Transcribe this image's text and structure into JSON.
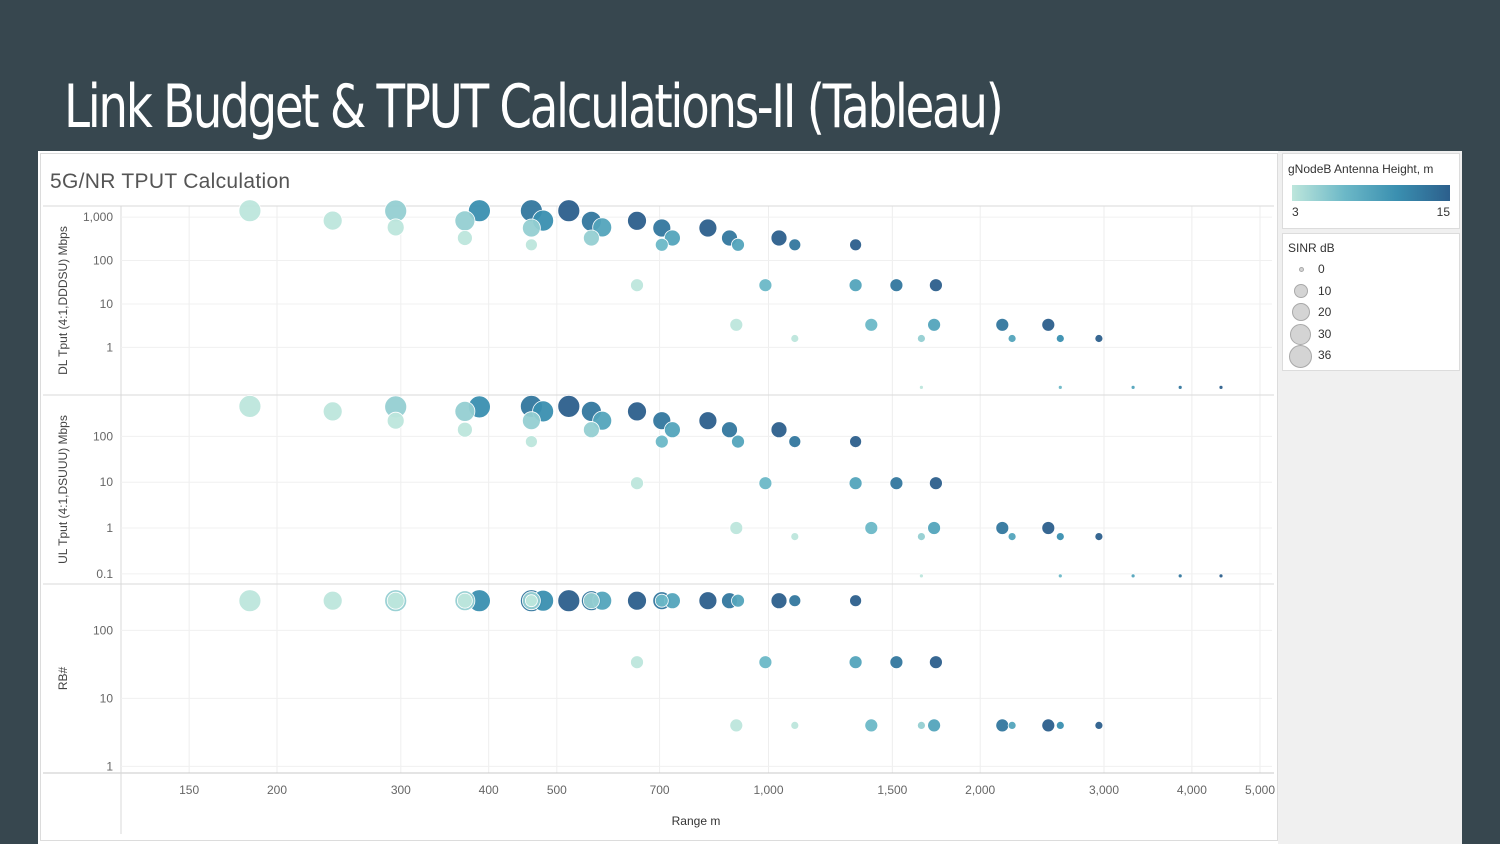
{
  "slide": {
    "title": "Link Budget & TPUT Calculations-II (Tableau)"
  },
  "viz": {
    "title": "5G/NR TPUT Calculation"
  },
  "legend_color": {
    "title": "gNodeB Antenna Height, m",
    "min_label": "3",
    "max_label": "15"
  },
  "legend_size": {
    "title": "SINR dB",
    "items": [
      {
        "label": "0",
        "value": 0
      },
      {
        "label": "10",
        "value": 10
      },
      {
        "label": "20",
        "value": 20
      },
      {
        "label": "30",
        "value": 30
      },
      {
        "label": "36",
        "value": 36
      }
    ]
  },
  "colors": {
    "background": "#37474f",
    "scale": [
      "#bde6dc",
      "#6cb8c7",
      "#3a8fb0",
      "#2c5f8c"
    ]
  },
  "chart_data": {
    "type": "scatter",
    "xlabel": "Range m",
    "xscale": "log",
    "xlim": [
      120,
      5200
    ],
    "x_ticks": [
      {
        "v": 150,
        "label": "150"
      },
      {
        "v": 200,
        "label": "200"
      },
      {
        "v": 300,
        "label": "300"
      },
      {
        "v": 400,
        "label": "400"
      },
      {
        "v": 500,
        "label": "500"
      },
      {
        "v": 700,
        "label": "700"
      },
      {
        "v": 1000,
        "label": "1,000"
      },
      {
        "v": 1500,
        "label": "1,500"
      },
      {
        "v": 2000,
        "label": "2,000"
      },
      {
        "v": 3000,
        "label": "3,000"
      },
      {
        "v": 4000,
        "label": "4,000"
      },
      {
        "v": 5000,
        "label": "5,000"
      }
    ],
    "color_encoding": "gNodeB Antenna Height, m",
    "size_encoding": "SINR dB",
    "panes": [
      {
        "ylabel": "DL Tput (4:1,DDDSU) Mbps",
        "yscale": "log",
        "ylim": [
          0.08,
          1800
        ],
        "y_ticks": [
          {
            "v": 1,
            "label": "1"
          },
          {
            "v": 10,
            "label": "10"
          },
          {
            "v": 100,
            "label": "100"
          },
          {
            "v": 1000,
            "label": "1,000"
          }
        ],
        "points": [
          {
            "x": 183,
            "y": 1400,
            "h": 3,
            "s": 36
          },
          {
            "x": 240,
            "y": 830,
            "h": 3,
            "s": 30
          },
          {
            "x": 295,
            "y": 1380,
            "h": 5,
            "s": 36
          },
          {
            "x": 295,
            "y": 580,
            "h": 3,
            "s": 26
          },
          {
            "x": 370,
            "y": 820,
            "h": 5,
            "s": 32
          },
          {
            "x": 370,
            "y": 330,
            "h": 3,
            "s": 22
          },
          {
            "x": 388,
            "y": 1400,
            "h": 11,
            "s": 36
          },
          {
            "x": 460,
            "y": 1400,
            "h": 13,
            "s": 36
          },
          {
            "x": 460,
            "y": 560,
            "h": 5,
            "s": 28
          },
          {
            "x": 460,
            "y": 230,
            "h": 3,
            "s": 16
          },
          {
            "x": 478,
            "y": 830,
            "h": 11,
            "s": 34
          },
          {
            "x": 520,
            "y": 1400,
            "h": 15,
            "s": 36
          },
          {
            "x": 560,
            "y": 800,
            "h": 13,
            "s": 32
          },
          {
            "x": 560,
            "y": 330,
            "h": 5,
            "s": 24
          },
          {
            "x": 580,
            "y": 580,
            "h": 9,
            "s": 30
          },
          {
            "x": 650,
            "y": 820,
            "h": 15,
            "s": 30
          },
          {
            "x": 650,
            "y": 27,
            "h": 3,
            "s": 18
          },
          {
            "x": 705,
            "y": 560,
            "h": 13,
            "s": 28
          },
          {
            "x": 705,
            "y": 230,
            "h": 7,
            "s": 18
          },
          {
            "x": 730,
            "y": 330,
            "h": 9,
            "s": 24
          },
          {
            "x": 820,
            "y": 560,
            "h": 15,
            "s": 28
          },
          {
            "x": 880,
            "y": 330,
            "h": 13,
            "s": 24
          },
          {
            "x": 905,
            "y": 230,
            "h": 9,
            "s": 18
          },
          {
            "x": 900,
            "y": 3.3,
            "h": 3,
            "s": 18
          },
          {
            "x": 990,
            "y": 27,
            "h": 7,
            "s": 18
          },
          {
            "x": 1035,
            "y": 330,
            "h": 15,
            "s": 24
          },
          {
            "x": 1090,
            "y": 230,
            "h": 13,
            "s": 16
          },
          {
            "x": 1090,
            "y": 1.6,
            "h": 3,
            "s": 8
          },
          {
            "x": 1330,
            "y": 230,
            "h": 15,
            "s": 16
          },
          {
            "x": 1330,
            "y": 27,
            "h": 9,
            "s": 18
          },
          {
            "x": 1400,
            "y": 3.3,
            "h": 7,
            "s": 18
          },
          {
            "x": 1520,
            "y": 27,
            "h": 13,
            "s": 18
          },
          {
            "x": 1650,
            "y": 1.6,
            "h": 5,
            "s": 8
          },
          {
            "x": 1650,
            "y": 0.12,
            "h": 3,
            "s": 0
          },
          {
            "x": 1730,
            "y": 27,
            "h": 15,
            "s": 18
          },
          {
            "x": 1720,
            "y": 3.3,
            "h": 9,
            "s": 18
          },
          {
            "x": 2150,
            "y": 3.3,
            "h": 13,
            "s": 18
          },
          {
            "x": 2220,
            "y": 1.6,
            "h": 9,
            "s": 8
          },
          {
            "x": 2500,
            "y": 3.3,
            "h": 15,
            "s": 18
          },
          {
            "x": 2600,
            "y": 1.6,
            "h": 11,
            "s": 8
          },
          {
            "x": 2600,
            "y": 0.12,
            "h": 7,
            "s": 0
          },
          {
            "x": 2950,
            "y": 1.6,
            "h": 15,
            "s": 8
          },
          {
            "x": 3300,
            "y": 0.12,
            "h": 9,
            "s": 0
          },
          {
            "x": 3850,
            "y": 0.12,
            "h": 13,
            "s": 0
          },
          {
            "x": 4400,
            "y": 0.12,
            "h": 15,
            "s": 0
          }
        ]
      },
      {
        "ylabel": "UL Tput (4:1,DSUUU) Mbps",
        "yscale": "log",
        "ylim": [
          0.06,
          800
        ],
        "y_ticks": [
          {
            "v": 0.1,
            "label": "0.1"
          },
          {
            "v": 1,
            "label": "1"
          },
          {
            "v": 10,
            "label": "10"
          },
          {
            "v": 100,
            "label": "100"
          }
        ],
        "points": [
          {
            "x": 183,
            "y": 450,
            "h": 3,
            "s": 36
          },
          {
            "x": 240,
            "y": 350,
            "h": 3,
            "s": 30
          },
          {
            "x": 295,
            "y": 440,
            "h": 5,
            "s": 36
          },
          {
            "x": 295,
            "y": 220,
            "h": 3,
            "s": 26
          },
          {
            "x": 370,
            "y": 350,
            "h": 5,
            "s": 32
          },
          {
            "x": 370,
            "y": 140,
            "h": 3,
            "s": 22
          },
          {
            "x": 388,
            "y": 440,
            "h": 11,
            "s": 36
          },
          {
            "x": 460,
            "y": 450,
            "h": 13,
            "s": 36
          },
          {
            "x": 460,
            "y": 220,
            "h": 5,
            "s": 28
          },
          {
            "x": 460,
            "y": 77,
            "h": 3,
            "s": 16
          },
          {
            "x": 478,
            "y": 350,
            "h": 11,
            "s": 34
          },
          {
            "x": 520,
            "y": 450,
            "h": 15,
            "s": 36
          },
          {
            "x": 560,
            "y": 350,
            "h": 13,
            "s": 32
          },
          {
            "x": 560,
            "y": 140,
            "h": 5,
            "s": 24
          },
          {
            "x": 580,
            "y": 220,
            "h": 9,
            "s": 30
          },
          {
            "x": 650,
            "y": 350,
            "h": 15,
            "s": 30
          },
          {
            "x": 650,
            "y": 9.5,
            "h": 3,
            "s": 18
          },
          {
            "x": 705,
            "y": 220,
            "h": 13,
            "s": 28
          },
          {
            "x": 705,
            "y": 77,
            "h": 7,
            "s": 18
          },
          {
            "x": 730,
            "y": 140,
            "h": 9,
            "s": 24
          },
          {
            "x": 820,
            "y": 220,
            "h": 15,
            "s": 28
          },
          {
            "x": 880,
            "y": 140,
            "h": 13,
            "s": 24
          },
          {
            "x": 905,
            "y": 77,
            "h": 9,
            "s": 18
          },
          {
            "x": 900,
            "y": 1,
            "h": 3,
            "s": 18
          },
          {
            "x": 990,
            "y": 9.5,
            "h": 7,
            "s": 18
          },
          {
            "x": 1035,
            "y": 140,
            "h": 15,
            "s": 24
          },
          {
            "x": 1090,
            "y": 77,
            "h": 13,
            "s": 16
          },
          {
            "x": 1090,
            "y": 0.65,
            "h": 3,
            "s": 8
          },
          {
            "x": 1330,
            "y": 77,
            "h": 15,
            "s": 16
          },
          {
            "x": 1330,
            "y": 9.5,
            "h": 9,
            "s": 18
          },
          {
            "x": 1400,
            "y": 1,
            "h": 7,
            "s": 18
          },
          {
            "x": 1520,
            "y": 9.5,
            "h": 13,
            "s": 18
          },
          {
            "x": 1650,
            "y": 0.65,
            "h": 5,
            "s": 8
          },
          {
            "x": 1650,
            "y": 0.09,
            "h": 3,
            "s": 0
          },
          {
            "x": 1730,
            "y": 9.5,
            "h": 15,
            "s": 18
          },
          {
            "x": 1720,
            "y": 1,
            "h": 9,
            "s": 18
          },
          {
            "x": 2150,
            "y": 1,
            "h": 13,
            "s": 18
          },
          {
            "x": 2220,
            "y": 0.65,
            "h": 9,
            "s": 8
          },
          {
            "x": 2500,
            "y": 1,
            "h": 15,
            "s": 18
          },
          {
            "x": 2600,
            "y": 0.65,
            "h": 11,
            "s": 8
          },
          {
            "x": 2600,
            "y": 0.09,
            "h": 7,
            "s": 0
          },
          {
            "x": 2950,
            "y": 0.65,
            "h": 15,
            "s": 8
          },
          {
            "x": 3300,
            "y": 0.09,
            "h": 9,
            "s": 0
          },
          {
            "x": 3850,
            "y": 0.09,
            "h": 13,
            "s": 0
          },
          {
            "x": 4400,
            "y": 0.09,
            "h": 15,
            "s": 0
          }
        ]
      },
      {
        "ylabel": "RB#",
        "yscale": "log",
        "ylim": [
          0.8,
          480
        ],
        "y_ticks": [
          {
            "v": 1,
            "label": "1"
          },
          {
            "v": 10,
            "label": "10"
          },
          {
            "v": 100,
            "label": "100"
          }
        ],
        "points": [
          {
            "x": 183,
            "y": 273,
            "h": 3,
            "s": 36
          },
          {
            "x": 240,
            "y": 273,
            "h": 3,
            "s": 30
          },
          {
            "x": 295,
            "y": 273,
            "h": 5,
            "s": 36
          },
          {
            "x": 295,
            "y": 273,
            "h": 3,
            "s": 26
          },
          {
            "x": 370,
            "y": 273,
            "h": 5,
            "s": 32
          },
          {
            "x": 370,
            "y": 273,
            "h": 3,
            "s": 22
          },
          {
            "x": 388,
            "y": 273,
            "h": 11,
            "s": 36
          },
          {
            "x": 460,
            "y": 273,
            "h": 13,
            "s": 36
          },
          {
            "x": 460,
            "y": 273,
            "h": 5,
            "s": 28
          },
          {
            "x": 460,
            "y": 273,
            "h": 3,
            "s": 16
          },
          {
            "x": 478,
            "y": 273,
            "h": 11,
            "s": 34
          },
          {
            "x": 520,
            "y": 273,
            "h": 15,
            "s": 36
          },
          {
            "x": 560,
            "y": 273,
            "h": 13,
            "s": 32
          },
          {
            "x": 560,
            "y": 273,
            "h": 5,
            "s": 24
          },
          {
            "x": 580,
            "y": 273,
            "h": 9,
            "s": 30
          },
          {
            "x": 650,
            "y": 273,
            "h": 15,
            "s": 30
          },
          {
            "x": 650,
            "y": 34,
            "h": 3,
            "s": 18
          },
          {
            "x": 705,
            "y": 273,
            "h": 13,
            "s": 28
          },
          {
            "x": 705,
            "y": 273,
            "h": 7,
            "s": 18
          },
          {
            "x": 730,
            "y": 273,
            "h": 9,
            "s": 24
          },
          {
            "x": 820,
            "y": 273,
            "h": 15,
            "s": 28
          },
          {
            "x": 880,
            "y": 273,
            "h": 13,
            "s": 24
          },
          {
            "x": 905,
            "y": 273,
            "h": 9,
            "s": 18
          },
          {
            "x": 900,
            "y": 4,
            "h": 3,
            "s": 18
          },
          {
            "x": 990,
            "y": 34,
            "h": 7,
            "s": 18
          },
          {
            "x": 1035,
            "y": 273,
            "h": 15,
            "s": 24
          },
          {
            "x": 1090,
            "y": 273,
            "h": 13,
            "s": 16
          },
          {
            "x": 1090,
            "y": 4,
            "h": 3,
            "s": 8
          },
          {
            "x": 1330,
            "y": 273,
            "h": 15,
            "s": 16
          },
          {
            "x": 1330,
            "y": 34,
            "h": 9,
            "s": 18
          },
          {
            "x": 1400,
            "y": 4,
            "h": 7,
            "s": 18
          },
          {
            "x": 1520,
            "y": 34,
            "h": 13,
            "s": 18
          },
          {
            "x": 1650,
            "y": 4,
            "h": 5,
            "s": 8
          },
          {
            "x": 1730,
            "y": 34,
            "h": 15,
            "s": 18
          },
          {
            "x": 1720,
            "y": 4,
            "h": 9,
            "s": 18
          },
          {
            "x": 2150,
            "y": 4,
            "h": 13,
            "s": 18
          },
          {
            "x": 2220,
            "y": 4,
            "h": 9,
            "s": 8
          },
          {
            "x": 2500,
            "y": 4,
            "h": 15,
            "s": 18
          },
          {
            "x": 2600,
            "y": 4,
            "h": 11,
            "s": 8
          },
          {
            "x": 2950,
            "y": 4,
            "h": 15,
            "s": 8
          }
        ]
      }
    ]
  }
}
